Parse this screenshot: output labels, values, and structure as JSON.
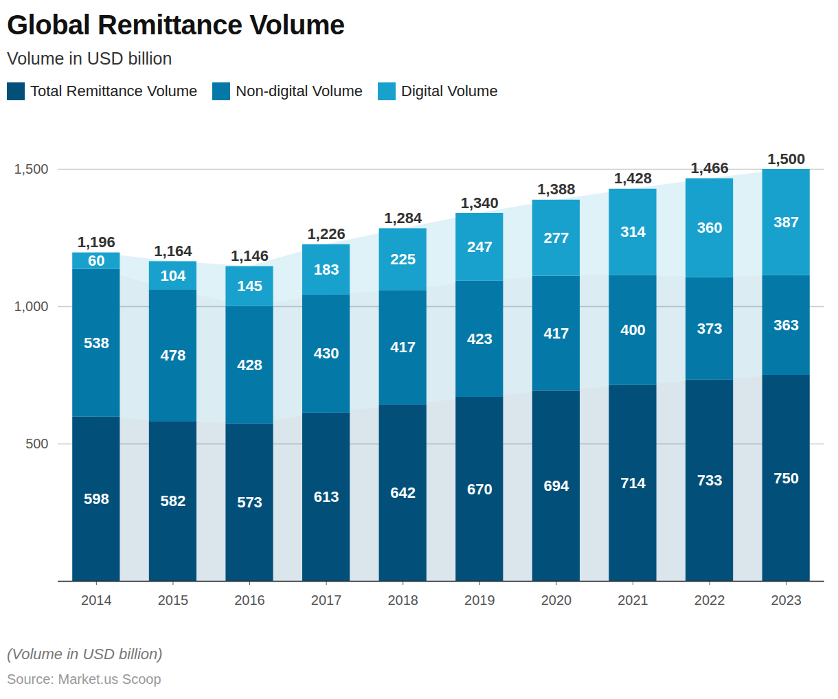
{
  "chart_data": {
    "type": "bar",
    "title": "Global Remittance Volume",
    "subtitle": "Volume in USD billion",
    "caption": "(Volume in USD billion)",
    "source": "Source: Market.us Scoop",
    "categories": [
      "2014",
      "2015",
      "2016",
      "2017",
      "2018",
      "2019",
      "2020",
      "2021",
      "2022",
      "2023"
    ],
    "series": [
      {
        "name": "Total Remittance Volume",
        "color": "#02507a",
        "values": [
          598,
          582,
          573,
          613,
          642,
          670,
          694,
          714,
          733,
          750
        ]
      },
      {
        "name": "Non-digital Volume",
        "color": "#0479a8",
        "values": [
          538,
          478,
          428,
          430,
          417,
          423,
          417,
          400,
          373,
          363
        ]
      },
      {
        "name": "Digital Volume",
        "color": "#19a1cd",
        "values": [
          60,
          104,
          145,
          183,
          225,
          247,
          277,
          314,
          360,
          387
        ]
      }
    ],
    "totals": [
      1196,
      1164,
      1146,
      1226,
      1284,
      1340,
      1388,
      1428,
      1466,
      1500
    ],
    "total_labels": [
      "1,196",
      "1,164",
      "1,146",
      "1,226",
      "1,284",
      "1,340",
      "1,388",
      "1,428",
      "1,466",
      "1,500"
    ],
    "stacked": true,
    "data_labels": true,
    "grid": true,
    "legend": "top-left",
    "ylim": [
      0,
      1500
    ],
    "yticks": [
      500,
      {
        "value": 1000,
        "label": "1,000"
      },
      {
        "value": 1500,
        "label": "1,500"
      }
    ]
  }
}
